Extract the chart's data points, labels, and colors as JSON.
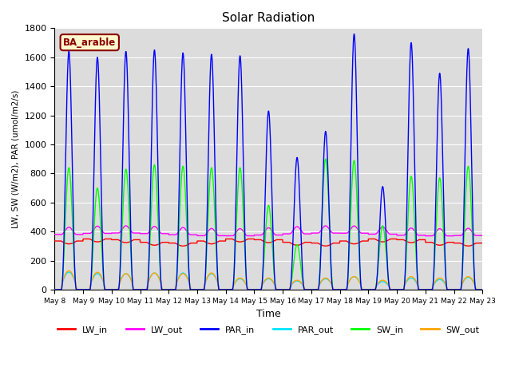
{
  "title": "Solar Radiation",
  "xlabel": "Time",
  "ylabel": "LW, SW (W/m2), PAR (umol/m2/s)",
  "annotation": "BA_arable",
  "ylim": [
    0,
    1800
  ],
  "n_days": 15,
  "background_color": "#dcdcdc",
  "series": {
    "LW_in": {
      "color": "#ff0000",
      "lw": 1.0
    },
    "LW_out": {
      "color": "#ff00ff",
      "lw": 1.0
    },
    "PAR_in": {
      "color": "#0000ff",
      "lw": 1.0
    },
    "PAR_out": {
      "color": "#00e5ff",
      "lw": 1.0
    },
    "SW_in": {
      "color": "#00ff00",
      "lw": 1.0
    },
    "SW_out": {
      "color": "#ffa500",
      "lw": 1.0
    }
  },
  "tick_labels": [
    "May 8",
    "May 9",
    "May 10",
    "May 11",
    "May 12",
    "May 13",
    "May 14",
    "May 15",
    "May 16",
    "May 17",
    "May 18",
    "May 19",
    "May 20",
    "May 21",
    "May 22",
    "May 23"
  ],
  "par_in_peaks": [
    1640,
    1600,
    1640,
    1650,
    1630,
    1620,
    1610,
    1230,
    910,
    1090,
    1760,
    710,
    1700,
    1490,
    1660
  ],
  "sw_in_peaks": [
    840,
    700,
    830,
    860,
    850,
    840,
    840,
    580,
    310,
    900,
    890,
    440,
    780,
    770,
    850
  ],
  "sw_out_peaks": [
    130,
    120,
    110,
    115,
    110,
    115,
    80,
    80,
    65,
    80,
    90,
    65,
    90,
    80,
    90
  ],
  "par_out_peaks": [
    120,
    110,
    110,
    115,
    115,
    110,
    75,
    75,
    60,
    75,
    90,
    55,
    80,
    70,
    85
  ],
  "lw_in_base": 335,
  "lw_out_base": 380,
  "gridline_color": "#ffffff",
  "yticks": [
    0,
    200,
    400,
    600,
    800,
    1000,
    1200,
    1400,
    1600,
    1800
  ]
}
